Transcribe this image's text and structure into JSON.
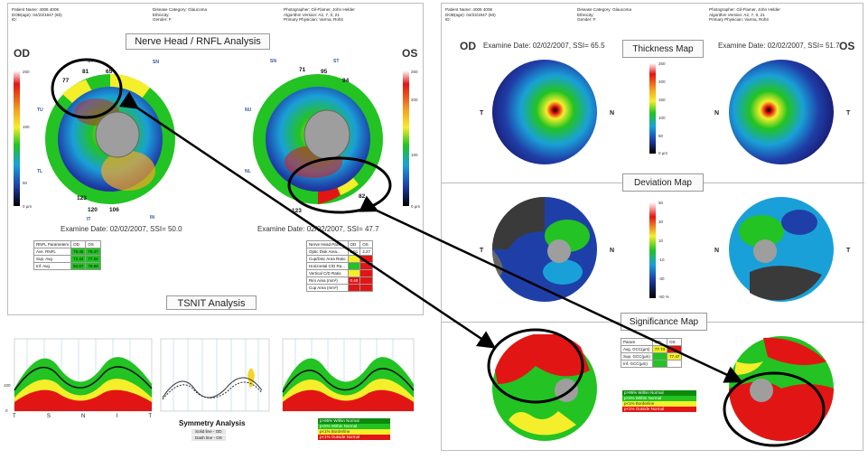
{
  "left_report": {
    "header": {
      "patient": [
        "Patient Name: 4006 4006",
        "DOB(age): 04/23/1947 (60)",
        "ID:"
      ],
      "disease": [
        "Disease Category: Glaucoma",
        "Ethnicity:",
        "Gender: F"
      ],
      "photographer": [
        "Photographer: Gil-Flamer, John Helder",
        "Algorithm Version: A2, 7, 0, 21",
        "Primary Physician: Varma, Rohit"
      ]
    },
    "title": "Nerve Head / RNFL Analysis",
    "eye_left": "OD",
    "eye_right": "OS",
    "od_exam": "Examine Date: 02/02/2007, SSI= 50.0",
    "os_exam": "Examine Date: 02/02/2007, SSI= 47.7",
    "clock_labels": [
      "ST",
      "ST",
      "SN",
      "NU",
      "NL",
      "TU",
      "TL",
      "IT",
      "IN"
    ],
    "od_ring_values": [
      "81",
      "65",
      "77",
      "123",
      "120",
      "106"
    ],
    "os_ring_values": [
      "71",
      "95",
      "94",
      "82",
      "74",
      "115",
      "123",
      "92",
      "77"
    ],
    "colorbar_ticks": [
      "250",
      "200",
      "150",
      "100",
      "50",
      "0 µm"
    ],
    "rnfl_table": {
      "headers": [
        "RNFL Parameters",
        "OD",
        "OS"
      ],
      "rows": [
        [
          "Ave. RNFL",
          "78.46",
          "76.47"
        ],
        [
          "Sup. Avg",
          "72.44",
          "77.84"
        ],
        [
          "Inf. Avg",
          "84.67",
          "79.89"
        ]
      ]
    },
    "nerve_table": {
      "headers": [
        "Nerve Head Para...",
        "OD",
        "OS"
      ],
      "rows": [
        [
          "Optic Disk Area...",
          "2.51",
          "2.27"
        ],
        [
          "Cup/Disc Area Ratio",
          "",
          ""
        ],
        [
          "Horizontal C/D Ra...",
          "",
          ""
        ],
        [
          "Vertical C/D Ratio",
          "",
          ""
        ],
        [
          "Rim Area (mm²)",
          "0.40",
          ""
        ],
        [
          "Cup Area (mm²)",
          "",
          ""
        ]
      ]
    },
    "tsnit_title": "TSNIT Analysis",
    "tsnit_axis": [
      "T",
      "S",
      "N",
      "I",
      "T"
    ],
    "tsnit_top_labels": [
      "TU",
      "ST",
      "SN",
      "NU",
      "NL",
      "IN",
      "IT",
      "TL"
    ],
    "symmetry_title": "Symmetry Analysis",
    "solid_line": "Solid line - OD",
    "dash_line": "Dash line - OS",
    "y_ticks": [
      "200",
      "100",
      "0"
    ],
    "legend": [
      "p>95% Within Normal",
      "p<5% Within Normal",
      "p<1% Borderline",
      "p<1% Outside Normal"
    ]
  },
  "right_report": {
    "header": {
      "patient": [
        "Patient Name: 4006 4006",
        "DOB(age): 04/23/1947 (60)",
        "ID:"
      ],
      "disease": [
        "Disease Category: Glaucoma",
        "Ethnicity:",
        "Gender: F"
      ],
      "photographer": [
        "Photographer: Gil-Flamer, John Helder",
        "Algorithm Version: A2, 7, 0, 21",
        "Primary Physician: Varma, Rohit"
      ]
    },
    "eye_left": "OD",
    "eye_right": "OS",
    "od_exam": "Examine Date: 02/02/2007, SSI= 65.5",
    "os_exam": "Examine Date: 02/02/2007, SSI= 51.7",
    "thickness_title": "Thickness Map",
    "deviation_title": "Deviation Map",
    "significance_title": "Significance Map",
    "t_label": "T",
    "n_label": "N",
    "thickness_ticks": [
      "250",
      "200",
      "150",
      "100",
      "50",
      "0 µm"
    ],
    "deviation_ticks": [
      "50",
      "40",
      "30",
      "20",
      "10",
      "0",
      "-10",
      "-20",
      "-30",
      "-40",
      "-50 %"
    ],
    "gcc_table": {
      "headers": [
        "Param",
        "OD",
        "OS"
      ],
      "rows": [
        [
          "Avg. GCC(µm)",
          "77.74",
          ""
        ],
        [
          "Sup. GCC(µm)",
          "",
          "77.47"
        ],
        [
          "Inf. GCC(µm)",
          "",
          ""
        ]
      ]
    },
    "legend": [
      "p>95% Within Normal",
      "p<5% Within Normal",
      "p<1% Borderline",
      "p<1% Outside Normal"
    ]
  },
  "colors": {
    "normal_green": "#22c322",
    "borderline_yellow": "#f5ee2a",
    "outside_red": "#e21515",
    "annotation_black": "#000000"
  }
}
